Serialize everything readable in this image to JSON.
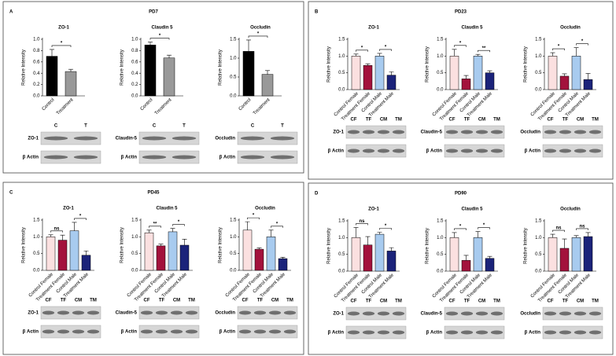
{
  "panels": [
    {
      "letter": "A",
      "title": "PD7",
      "blots": [
        {
          "lanes": [
            "C",
            "T"
          ],
          "rows": [
            "ZO-1",
            "β Actin"
          ]
        },
        {
          "lanes": [
            "C",
            "T"
          ],
          "rows": [
            "Claudin-5",
            "β Actin"
          ]
        },
        {
          "lanes": [
            "C",
            "T"
          ],
          "rows": [
            "Occludin",
            "β Actin"
          ]
        }
      ]
    },
    {
      "letter": "B",
      "title": "PD23",
      "blots": [
        {
          "lanes": [
            "CF",
            "TF",
            "CM",
            "TM"
          ],
          "rows": [
            "ZO-1",
            "β Actin"
          ]
        },
        {
          "lanes": [
            "CF",
            "TF",
            "CM",
            "TM"
          ],
          "rows": [
            "Claudin-5",
            "β Actin"
          ]
        },
        {
          "lanes": [
            "CF",
            "TF",
            "CM",
            "TM"
          ],
          "rows": [
            "Occludin",
            "β Actin"
          ]
        }
      ]
    },
    {
      "letter": "C",
      "title": "PD45",
      "blots": [
        {
          "lanes": [
            "CF",
            "TF",
            "CM",
            "TM"
          ],
          "rows": [
            "ZO-1",
            "β Actin"
          ]
        },
        {
          "lanes": [
            "CF",
            "TF",
            "CM",
            "TM"
          ],
          "rows": [
            "Claudin-5",
            "β Actin"
          ]
        },
        {
          "lanes": [
            "CF",
            "TF",
            "CM",
            "TM"
          ],
          "rows": [
            "Occludin",
            "β Actin"
          ]
        }
      ]
    },
    {
      "letter": "D",
      "title": "PD90",
      "blots": [
        {
          "lanes": [
            "CF",
            "TF",
            "CM",
            "TM"
          ],
          "rows": [
            "ZO-1",
            "β Actin"
          ]
        },
        {
          "lanes": [
            "CF",
            "TF",
            "CM",
            "TM"
          ],
          "rows": [
            "Claudin-5",
            "β Actin"
          ]
        },
        {
          "lanes": [
            "CF",
            "TF",
            "CM",
            "TM"
          ],
          "rows": [
            "Occludin",
            "β Actin"
          ]
        }
      ]
    }
  ],
  "chart_data": [
    {
      "type": "bar",
      "title": "ZO-1",
      "y_label": "Relative Intensity",
      "categories": [
        "Control",
        "Treatment"
      ],
      "colors": [
        "#000000",
        "#999999"
      ],
      "values": [
        0.7,
        0.43
      ],
      "errors": [
        0.12,
        0.04
      ],
      "ylim": [
        0,
        1
      ],
      "yticks": [
        {
          "value": 0,
          "label": "0.0"
        },
        0.2,
        0.4,
        0.6,
        0.8,
        {
          "value": 1,
          "label": "1.0"
        }
      ],
      "significance": [
        "*"
      ]
    },
    {
      "type": "bar",
      "title": "Claudin 5",
      "y_label": "Relative Intensity",
      "categories": [
        "Control",
        "Treatment"
      ],
      "colors": [
        "#000000",
        "#999999"
      ],
      "values": [
        0.9,
        0.67
      ],
      "errors": [
        0.05,
        0.05
      ],
      "ylim": [
        0,
        1
      ],
      "yticks": [
        {
          "value": 0,
          "label": "0.0"
        },
        0.2,
        0.4,
        0.6,
        0.8,
        {
          "value": 1,
          "label": "1.0"
        }
      ],
      "significance": [
        "*"
      ]
    },
    {
      "type": "bar",
      "title": "Occludin",
      "y_label": "Relative Intensity",
      "categories": [
        "Control",
        "Treatment"
      ],
      "colors": [
        "#000000",
        "#999999"
      ],
      "values": [
        1.18,
        0.57
      ],
      "errors": [
        0.3,
        0.1
      ],
      "ylim": [
        0,
        1.5
      ],
      "yticks": [
        {
          "value": 0,
          "label": "0.0"
        },
        0.5,
        {
          "value": 1,
          "label": "1.0"
        },
        1.5
      ],
      "significance": [
        "*"
      ]
    },
    {
      "type": "bar",
      "title": "ZO-1",
      "y_label": "Relative Intensity",
      "categories": [
        "Control Female",
        "Treatment Female",
        "Control Male",
        "Treatment Male"
      ],
      "colors": [
        "#fbe0e0",
        "#a3123c",
        "#a8cbef",
        "#1b237a"
      ],
      "values": [
        1.0,
        0.72,
        1.0,
        0.43
      ],
      "errors": [
        0.06,
        0.05,
        0.08,
        0.1
      ],
      "ylim": [
        0,
        1.5
      ],
      "yticks": [
        {
          "value": 0,
          "label": "0.0"
        },
        0.5,
        {
          "value": 1,
          "label": "1.0"
        },
        1.5
      ],
      "significance": [
        "*",
        "*"
      ]
    },
    {
      "type": "bar",
      "title": "Claudin 5",
      "y_label": "Relative Intensity",
      "categories": [
        "Control Female",
        "Treatment Female",
        "Control Male",
        "Treatment Male"
      ],
      "colors": [
        "#fbe0e0",
        "#a3123c",
        "#a8cbef",
        "#1b237a"
      ],
      "values": [
        1.0,
        0.32,
        1.0,
        0.5
      ],
      "errors": [
        0.2,
        0.1,
        0.05,
        0.06
      ],
      "ylim": [
        0,
        1.5
      ],
      "yticks": [
        {
          "value": 0,
          "label": "0.0"
        },
        0.5,
        {
          "value": 1,
          "label": "1.0"
        },
        1.5
      ],
      "significance": [
        "*",
        "**"
      ]
    },
    {
      "type": "bar",
      "title": "Occludin",
      "y_label": "Relative Intensity",
      "categories": [
        "Control Female",
        "Treatment Female",
        "Control Male",
        "Treatment Male"
      ],
      "colors": [
        "#fbe0e0",
        "#a3123c",
        "#a8cbef",
        "#1b237a"
      ],
      "values": [
        1.0,
        0.4,
        1.0,
        0.3
      ],
      "errors": [
        0.1,
        0.07,
        0.25,
        0.18
      ],
      "ylim": [
        0,
        1.5
      ],
      "yticks": [
        {
          "value": 0,
          "label": "0.0"
        },
        0.5,
        {
          "value": 1,
          "label": "1.0"
        },
        1.5
      ],
      "significance": [
        "*",
        "*"
      ]
    },
    {
      "type": "bar",
      "title": "ZO-1",
      "y_label": "Relative Intensity",
      "categories": [
        "Control Female",
        "Treatment Female",
        "Control Male",
        "Treatment Male"
      ],
      "colors": [
        "#fbe0e0",
        "#a3123c",
        "#a8cbef",
        "#1b237a"
      ],
      "values": [
        1.0,
        0.9,
        1.18,
        0.45
      ],
      "errors": [
        0.06,
        0.15,
        0.25,
        0.13
      ],
      "ylim": [
        0,
        1.5
      ],
      "yticks": [
        {
          "value": 0,
          "label": "0.0"
        },
        0.5,
        {
          "value": 1,
          "label": "1.0"
        },
        1.5
      ],
      "significance": [
        "ns",
        "*"
      ]
    },
    {
      "type": "bar",
      "title": "Claudin 5",
      "y_label": "Relative Intensity",
      "categories": [
        "Control Female",
        "Treatment Female",
        "Control Male",
        "Treatment Male"
      ],
      "colors": [
        "#fbe0e0",
        "#a3123c",
        "#a8cbef",
        "#1b237a"
      ],
      "values": [
        1.12,
        0.73,
        1.15,
        0.75
      ],
      "errors": [
        0.08,
        0.05,
        0.1,
        0.18
      ],
      "ylim": [
        0,
        1.5
      ],
      "yticks": [
        {
          "value": 0,
          "label": "0.0"
        },
        0.5,
        {
          "value": 1,
          "label": "1.0"
        },
        1.5
      ],
      "significance": [
        "**",
        "*"
      ]
    },
    {
      "type": "bar",
      "title": "Occludin",
      "y_label": "Relative Intensity",
      "categories": [
        "Control Female",
        "Treatment Female",
        "Control Male",
        "Treatment Male"
      ],
      "colors": [
        "#fbe0e0",
        "#a3123c",
        "#a8cbef",
        "#1b237a"
      ],
      "values": [
        1.2,
        0.63,
        1.0,
        0.35
      ],
      "errors": [
        0.25,
        0.04,
        0.2,
        0.04
      ],
      "ylim": [
        0,
        1.5
      ],
      "yticks": [
        {
          "value": 0,
          "label": "0.0"
        },
        0.5,
        {
          "value": 1,
          "label": "1.0"
        },
        1.5
      ],
      "significance": [
        "*",
        "*"
      ]
    },
    {
      "type": "bar",
      "title": "ZO-1",
      "y_label": "Relative Intensity",
      "categories": [
        "Control Female",
        "Treatment Female",
        "Control Male",
        "Treatment Male"
      ],
      "colors": [
        "#fbe0e0",
        "#a3123c",
        "#a8cbef",
        "#1b237a"
      ],
      "values": [
        1.0,
        0.78,
        1.1,
        0.6
      ],
      "errors": [
        0.3,
        0.25,
        0.06,
        0.1
      ],
      "ylim": [
        0,
        1.5
      ],
      "yticks": [
        {
          "value": 0,
          "label": "0.0"
        },
        0.5,
        {
          "value": 1,
          "label": "1.0"
        },
        1.5
      ],
      "significance": [
        "ns",
        "*"
      ]
    },
    {
      "type": "bar",
      "title": "Claudin 5",
      "y_label": "Relative Intensity",
      "categories": [
        "Control Female",
        "Treatment Female",
        "Control Male",
        "Treatment Male"
      ],
      "colors": [
        "#fbe0e0",
        "#a3123c",
        "#a8cbef",
        "#1b237a"
      ],
      "values": [
        1.0,
        0.32,
        1.0,
        0.38
      ],
      "errors": [
        0.15,
        0.15,
        0.18,
        0.06
      ],
      "ylim": [
        0,
        1.5
      ],
      "yticks": [
        {
          "value": 0,
          "label": "0.0"
        },
        0.5,
        {
          "value": 1,
          "label": "1.0"
        },
        1.5
      ],
      "significance": [
        "*",
        "*"
      ]
    },
    {
      "type": "bar",
      "title": "Occludin",
      "y_label": "Relative Intensity",
      "categories": [
        "Control Female",
        "Treatment Female",
        "Control Male",
        "Treatment Male"
      ],
      "colors": [
        "#fbe0e0",
        "#a3123c",
        "#a8cbef",
        "#1b237a"
      ],
      "values": [
        1.0,
        0.68,
        1.0,
        1.03
      ],
      "errors": [
        0.1,
        0.28,
        0.06,
        0.12
      ],
      "ylim": [
        0,
        1.5
      ],
      "yticks": [
        {
          "value": 0,
          "label": "0.0"
        },
        0.5,
        {
          "value": 1,
          "label": "1.0"
        },
        1.5
      ],
      "significance": [
        "ns",
        "ns"
      ]
    }
  ]
}
